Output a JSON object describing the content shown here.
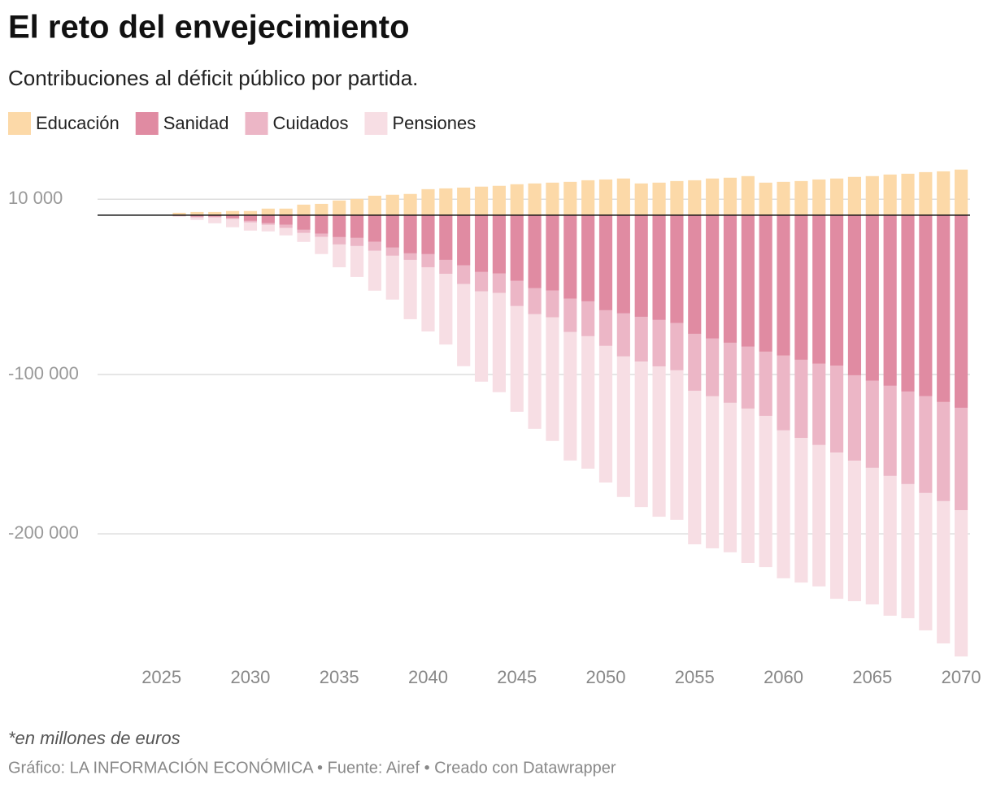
{
  "title": "El reto del envejecimiento",
  "subtitle": "Contribuciones al déficit público por partida.",
  "note": "*en millones de euros",
  "source": "Gráfico: LA INFORMACIÓN ECONÓMICA • Fuente: Airef • Creado con Datawrapper",
  "chart_data": {
    "type": "stacked-bar",
    "x": [
      2026,
      2027,
      2028,
      2029,
      2030,
      2031,
      2032,
      2033,
      2034,
      2035,
      2036,
      2037,
      2038,
      2039,
      2040,
      2041,
      2042,
      2043,
      2044,
      2045,
      2046,
      2047,
      2048,
      2049,
      2050,
      2051,
      2052,
      2053,
      2054,
      2055,
      2056,
      2057,
      2058,
      2059,
      2060,
      2061,
      2062,
      2063,
      2064,
      2065,
      2066,
      2067,
      2068,
      2069,
      2070
    ],
    "series": [
      {
        "name": "Educación",
        "color": "#fcd9a8",
        "values": [
          1500,
          2000,
          2000,
          2600,
          2600,
          4100,
          4100,
          6600,
          7100,
          9200,
          10200,
          12200,
          12800,
          13300,
          16300,
          16800,
          17300,
          17900,
          18400,
          19400,
          19900,
          20400,
          20900,
          21900,
          22400,
          23000,
          19900,
          20400,
          21400,
          21900,
          23000,
          23500,
          24500,
          20400,
          20900,
          21400,
          22400,
          23000,
          24000,
          24500,
          25500,
          26000,
          27000,
          27500,
          28600
        ]
      },
      {
        "name": "Sanidad",
        "color": "#e08ba2",
        "values": [
          -500,
          -1000,
          -1000,
          -2000,
          -3600,
          -5100,
          -6100,
          -9200,
          -11700,
          -13800,
          -14300,
          -16800,
          -20400,
          -24000,
          -24500,
          -28100,
          -31600,
          -35700,
          -36700,
          -41300,
          -45900,
          -47400,
          -52500,
          -54100,
          -59700,
          -61700,
          -63800,
          -65800,
          -67800,
          -74500,
          -77500,
          -80100,
          -82600,
          -85700,
          -88200,
          -90800,
          -93300,
          -94400,
          -100500,
          -104000,
          -107100,
          -110700,
          -113700,
          -117300,
          -120900
        ]
      },
      {
        "name": "Cuidados",
        "color": "#ecb6c6",
        "values": [
          -200,
          -500,
          -500,
          -500,
          -1000,
          -1000,
          -2000,
          -2000,
          -2000,
          -4600,
          -5100,
          -5600,
          -5100,
          -4100,
          -8200,
          -8700,
          -11700,
          -12200,
          -12200,
          -15800,
          -16300,
          -16800,
          -20900,
          -21900,
          -22400,
          -27000,
          -28100,
          -29100,
          -29600,
          -35700,
          -36200,
          -37700,
          -38800,
          -40300,
          -46900,
          -49000,
          -51000,
          -54600,
          -53600,
          -54600,
          -56600,
          -58100,
          -60700,
          -62200,
          -64300
        ]
      },
      {
        "name": "Pensiones",
        "color": "#f7dee4",
        "values": [
          -300,
          -1500,
          -3600,
          -5100,
          -5100,
          -4100,
          -4600,
          -5600,
          -10700,
          -14300,
          -19400,
          -25000,
          -27500,
          -37200,
          -40300,
          -44400,
          -51500,
          -56600,
          -62200,
          -66300,
          -71900,
          -77500,
          -80600,
          -83100,
          -85700,
          -88200,
          -91300,
          -94400,
          -93800,
          -96400,
          -95400,
          -93800,
          -96900,
          -94900,
          -92800,
          -90800,
          -88700,
          -91800,
          -88200,
          -85700,
          -87700,
          -84200,
          -86200,
          -89300,
          -91800
        ]
      }
    ],
    "xlim": [
      2021.4,
      2070.5
    ],
    "xticks": [
      2025,
      2030,
      2035,
      2040,
      2045,
      2050,
      2055,
      2060,
      2065,
      2070
    ],
    "ylim": [
      -280000,
      30000
    ],
    "yticks": [
      {
        "value": 10000,
        "label": "10 000"
      },
      {
        "value": -100000,
        "label": "-100 000"
      },
      {
        "value": -200000,
        "label": "-200 000"
      }
    ],
    "grid": true
  }
}
